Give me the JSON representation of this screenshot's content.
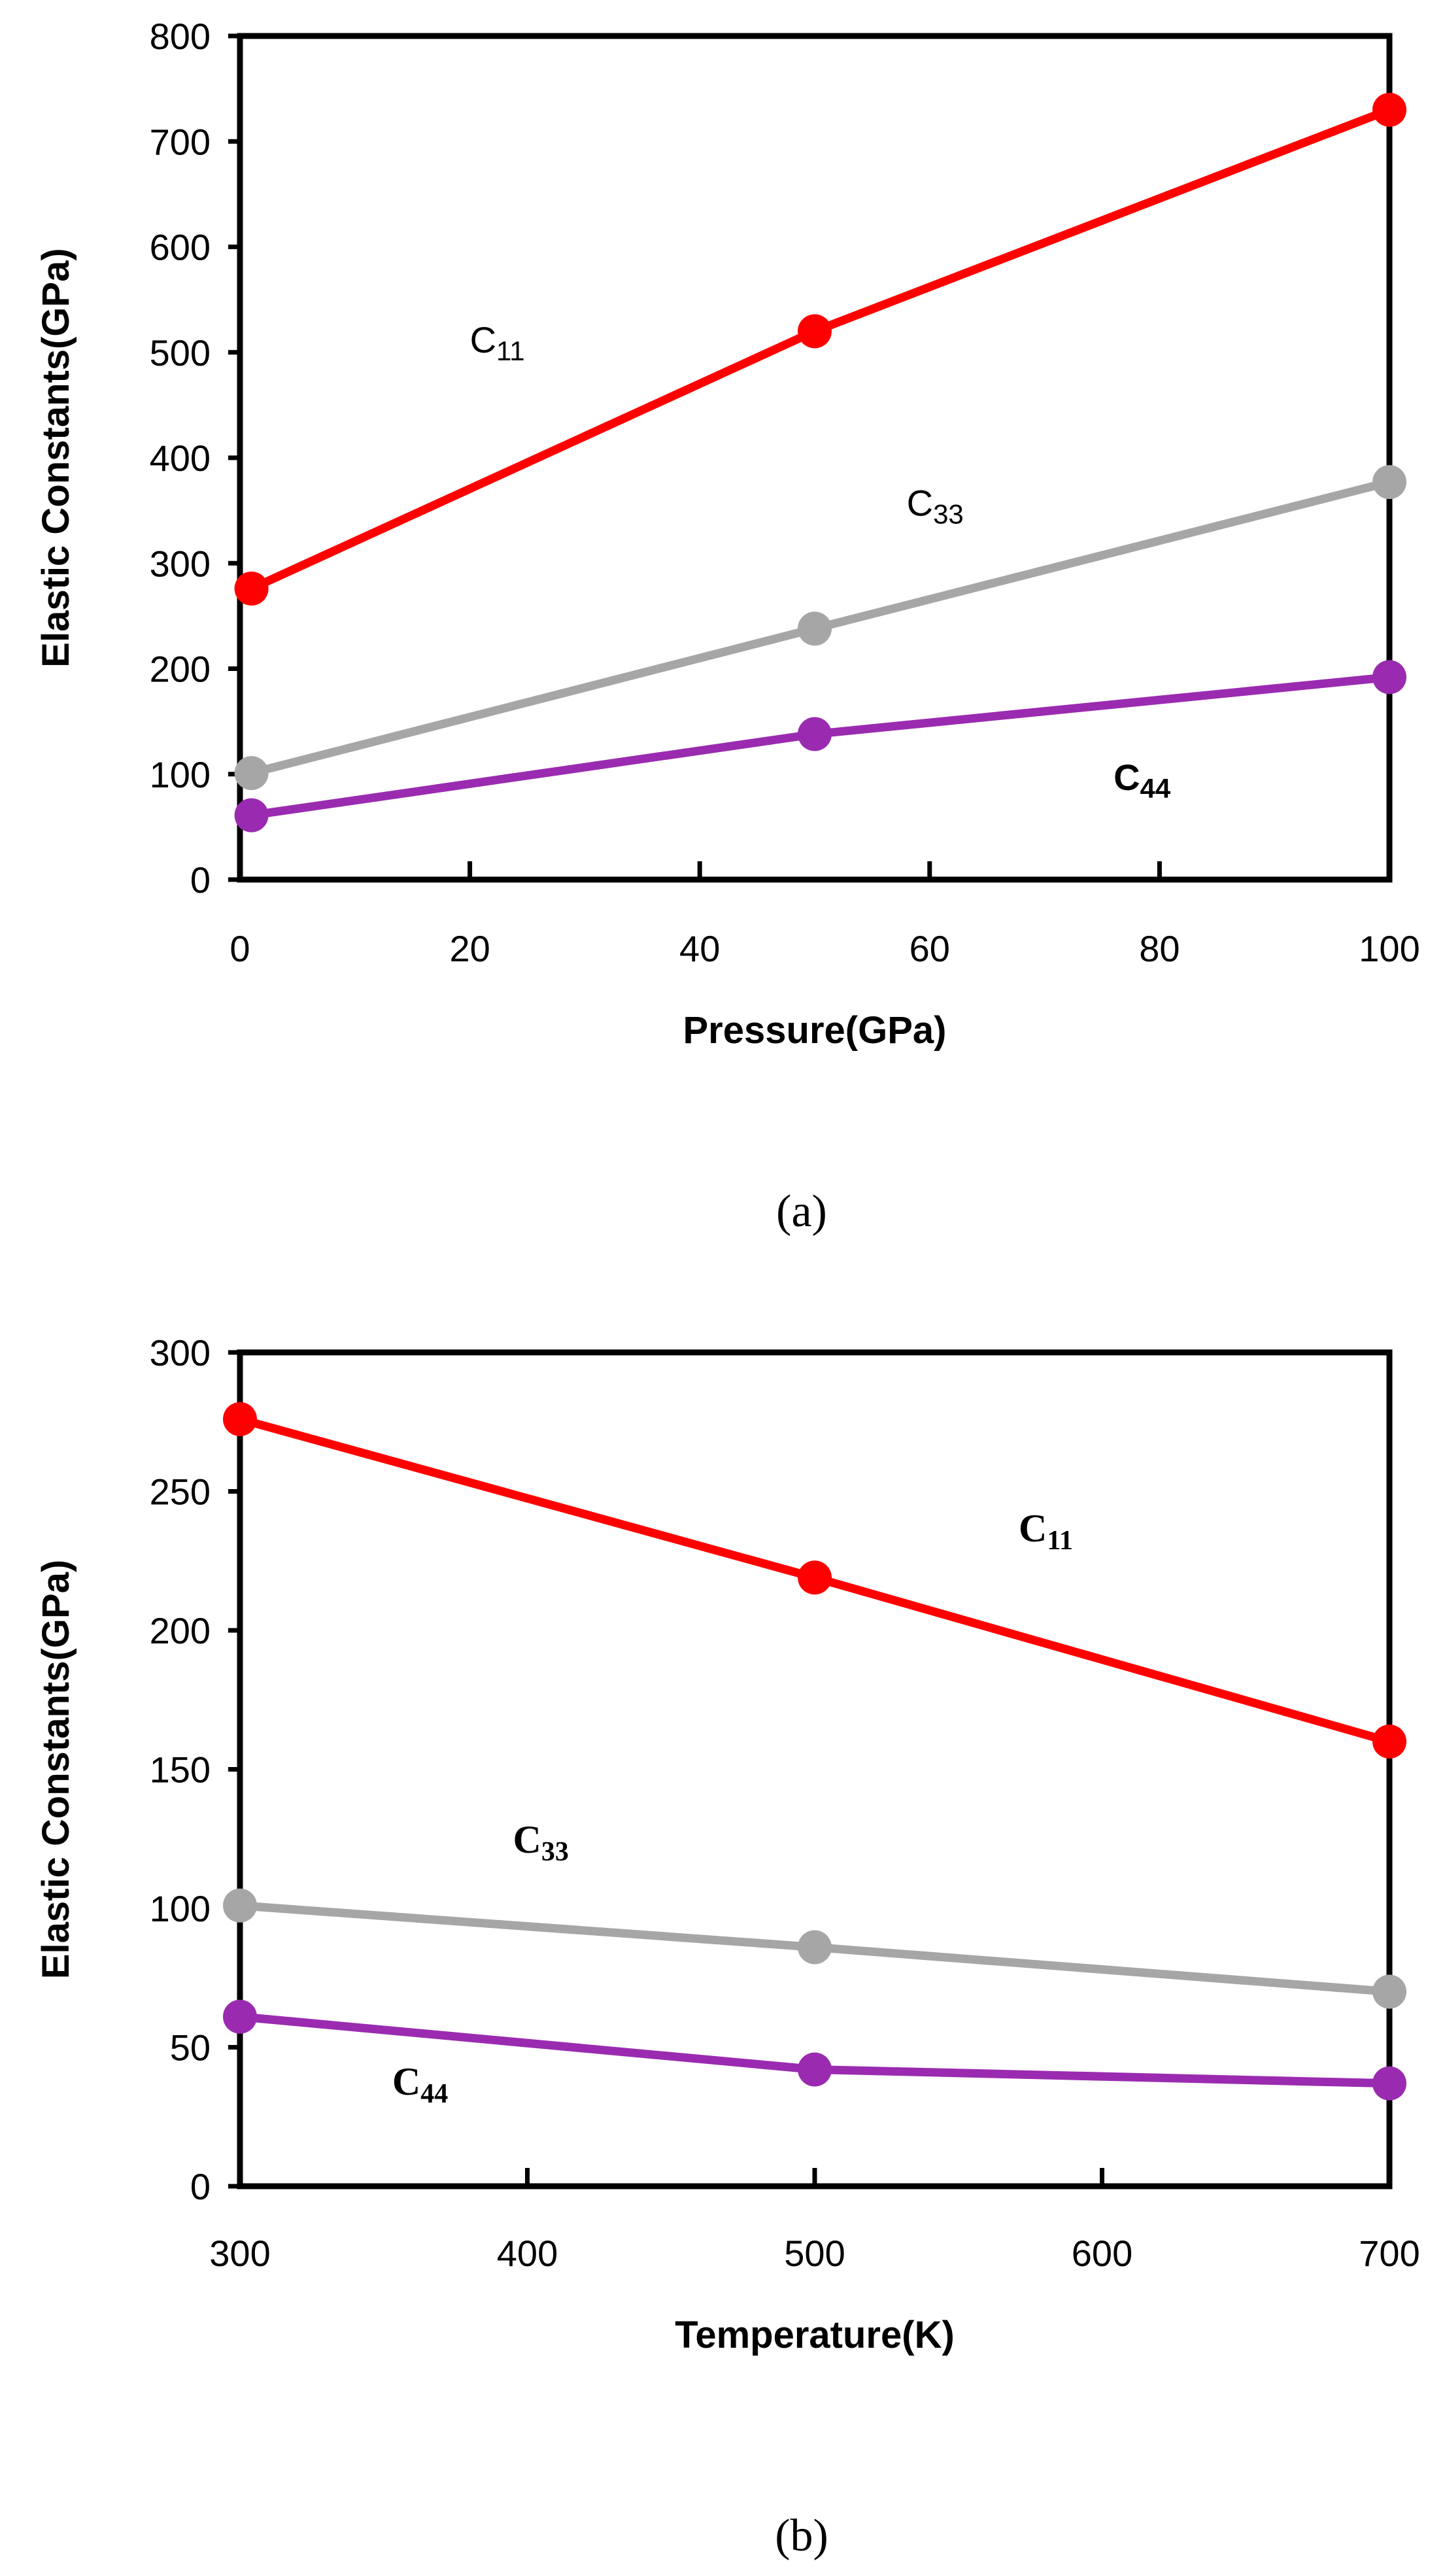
{
  "chart_data": [
    {
      "type": "line",
      "panel": "a",
      "caption": "(a)",
      "title": "",
      "xlabel": "Pressure(GPa)",
      "ylabel": "Elastic Constants(GPa)",
      "xlim": [
        0,
        100
      ],
      "ylim": [
        0,
        800
      ],
      "xticks": [
        0,
        20,
        40,
        60,
        80,
        100
      ],
      "yticks": [
        0,
        100,
        200,
        300,
        400,
        500,
        600,
        700,
        800
      ],
      "grid": false,
      "x": [
        1,
        50,
        100
      ],
      "series": [
        {
          "name": "C11",
          "color": "#ff0000",
          "values": [
            276,
            520,
            730
          ]
        },
        {
          "name": "C33",
          "color": "#a6a6a6",
          "values": [
            101,
            238,
            377
          ]
        },
        {
          "name": "C44",
          "color": "#9a2bb0",
          "values": [
            61,
            138,
            192
          ]
        }
      ],
      "annotations": [
        {
          "base": "C",
          "sub": "11",
          "style": "sans",
          "x": 20,
          "y": 500
        },
        {
          "base": "C",
          "sub": "33",
          "style": "sans",
          "x": 58,
          "y": 345
        },
        {
          "base": "C",
          "sub": "44",
          "style": "sans-bold",
          "x": 76,
          "y": 85
        }
      ]
    },
    {
      "type": "line",
      "panel": "b",
      "caption": "(b)",
      "title": "",
      "xlabel": "Temperature(K)",
      "ylabel": "Elastic Constants(GPa)",
      "xlim": [
        300,
        700
      ],
      "ylim": [
        0,
        300
      ],
      "xticks": [
        300,
        400,
        500,
        600,
        700
      ],
      "yticks": [
        0,
        50,
        100,
        150,
        200,
        250,
        300
      ],
      "grid": false,
      "x": [
        300,
        500,
        700
      ],
      "series": [
        {
          "name": "C11",
          "color": "#ff0000",
          "values": [
            276,
            219,
            160
          ]
        },
        {
          "name": "C33",
          "color": "#a6a6a6",
          "values": [
            101,
            86,
            70
          ]
        },
        {
          "name": "C44",
          "color": "#9a2bb0",
          "values": [
            61,
            42,
            37
          ]
        }
      ],
      "annotations": [
        {
          "base": "C",
          "sub": "11",
          "style": "serif",
          "x": 571,
          "y": 232
        },
        {
          "base": "C",
          "sub": "33",
          "style": "serif",
          "x": 395,
          "y": 120
        },
        {
          "base": "C",
          "sub": "44",
          "style": "serif",
          "x": 353,
          "y": 33
        }
      ]
    }
  ]
}
